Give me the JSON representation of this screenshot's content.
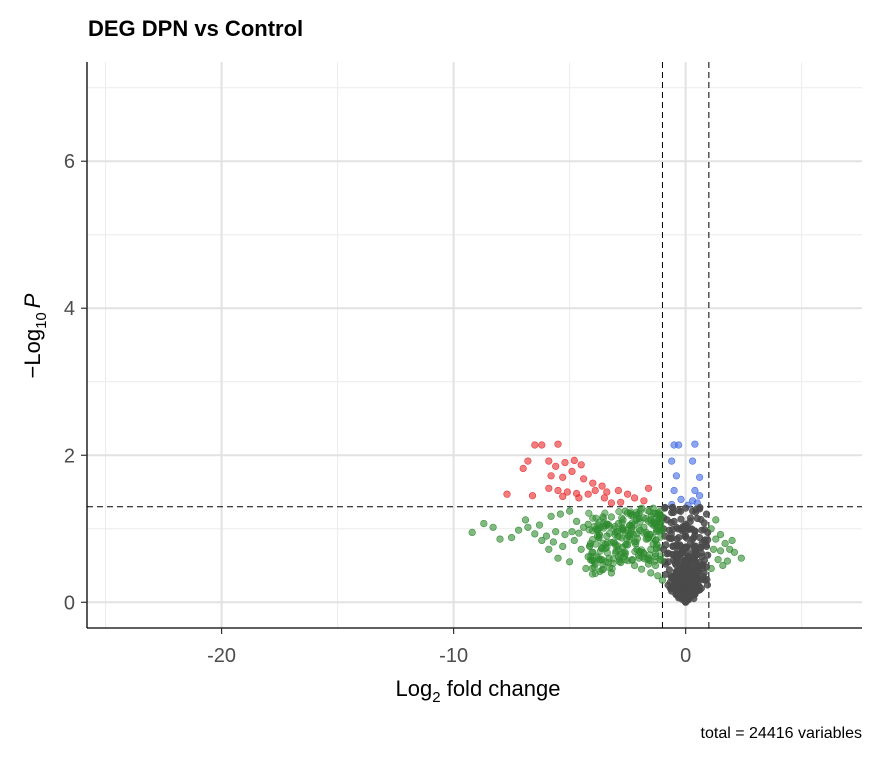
{
  "chart_data": {
    "type": "scatter",
    "title": "DEG DPN vs Control",
    "xlabel": {
      "base": "Log",
      "sub": "2",
      "rest": " fold change"
    },
    "ylabel": {
      "prefix": "−Log",
      "sub": "10",
      "italic": "P"
    },
    "caption": "total = 24416 variables",
    "xlim": [
      -25.8,
      7.6
    ],
    "ylim": [
      -0.35,
      7.35
    ],
    "x_ticks": [
      -20,
      -10,
      0
    ],
    "x_tick_labels": [
      "-20",
      "-10",
      "0"
    ],
    "y_ticks": [
      0,
      2,
      4,
      6
    ],
    "y_tick_labels": [
      "0",
      "2",
      "4",
      "6"
    ],
    "x_minor_gridlines": [
      -25,
      -15,
      -5,
      5
    ],
    "y_minor_gridlines": [
      1,
      3,
      5,
      7
    ],
    "legend": "none",
    "grid": true,
    "thresholds": {
      "fold_change": [
        -1,
        1
      ],
      "p_value": 1.3
    },
    "colors": {
      "ns": "#4a4a4a",
      "log2fc": "#2e8b2e",
      "p": "#4169e1",
      "p_and_log2fc": "#e8282a"
    },
    "series": [
      {
        "key": "p_and_log2fc",
        "points": [
          [
            -6.5,
            2.14
          ],
          [
            -6.2,
            2.14
          ],
          [
            -5.5,
            2.15
          ],
          [
            -6.8,
            1.92
          ],
          [
            -5.9,
            1.92
          ],
          [
            -7.0,
            1.82
          ],
          [
            -5.6,
            1.85
          ],
          [
            -5.2,
            1.9
          ],
          [
            -4.8,
            1.93
          ],
          [
            -4.5,
            1.87
          ],
          [
            -5.8,
            1.72
          ],
          [
            -5.3,
            1.7
          ],
          [
            -4.9,
            1.78
          ],
          [
            -4.4,
            1.68
          ],
          [
            -4.0,
            1.62
          ],
          [
            -3.6,
            1.58
          ],
          [
            -5.9,
            1.55
          ],
          [
            -5.5,
            1.52
          ],
          [
            -5.1,
            1.5
          ],
          [
            -4.7,
            1.48
          ],
          [
            -4.2,
            1.47
          ],
          [
            -3.9,
            1.52
          ],
          [
            -3.4,
            1.5
          ],
          [
            -2.9,
            1.52
          ],
          [
            -2.5,
            1.47
          ],
          [
            -2.2,
            1.42
          ],
          [
            -1.8,
            1.38
          ],
          [
            -1.6,
            1.55
          ],
          [
            -7.7,
            1.47
          ],
          [
            -6.6,
            1.45
          ],
          [
            -2.8,
            1.36
          ],
          [
            -3.2,
            1.35
          ],
          [
            -4.6,
            1.42
          ],
          [
            -5.3,
            1.44
          ],
          [
            -3.5,
            1.42
          ]
        ]
      },
      {
        "key": "p",
        "points": [
          [
            -0.5,
            2.14
          ],
          [
            -0.3,
            2.14
          ],
          [
            0.4,
            2.15
          ],
          [
            -0.6,
            1.92
          ],
          [
            0.3,
            1.92
          ],
          [
            -0.4,
            1.72
          ],
          [
            0.6,
            1.7
          ],
          [
            -0.5,
            1.52
          ],
          [
            0.4,
            1.52
          ],
          [
            0.6,
            1.45
          ],
          [
            -0.2,
            1.4
          ],
          [
            0.3,
            1.38
          ],
          [
            0.5,
            1.35
          ],
          [
            -0.6,
            1.33
          ],
          [
            0.1,
            1.32
          ]
        ]
      },
      {
        "key": "log2fc",
        "points": [
          [
            -8.7,
            1.07
          ],
          [
            -8.3,
            1.02
          ],
          [
            -9.2,
            0.95
          ],
          [
            -7.2,
            0.98
          ],
          [
            -6.8,
            1.02
          ],
          [
            -6.5,
            0.93
          ],
          [
            -6.0,
            0.9
          ],
          [
            -5.6,
            0.96
          ],
          [
            -7.5,
            0.88
          ],
          [
            -8.0,
            0.86
          ],
          [
            -6.3,
            1.05
          ],
          [
            -5.8,
            1.17
          ],
          [
            -5.4,
            1.2
          ],
          [
            -5.0,
            1.24
          ],
          [
            -4.7,
            1.1
          ],
          [
            -4.4,
            1.02
          ],
          [
            -4.9,
            0.96
          ],
          [
            -5.7,
            0.82
          ],
          [
            -5.9,
            0.72
          ],
          [
            -5.3,
            0.76
          ],
          [
            -4.8,
            0.84
          ],
          [
            -4.5,
            0.72
          ],
          [
            -4.1,
            0.8
          ],
          [
            -3.8,
            0.9
          ],
          [
            -3.5,
            1.04
          ],
          [
            -3.2,
            1.16
          ],
          [
            -2.9,
            1.07
          ],
          [
            -2.7,
            0.98
          ],
          [
            -2.4,
            0.86
          ],
          [
            -2.1,
            0.93
          ],
          [
            -1.8,
            1.02
          ],
          [
            -1.5,
            1.12
          ],
          [
            -1.2,
            1.2
          ],
          [
            -2.3,
            1.19
          ],
          [
            -2.0,
            1.14
          ],
          [
            -1.7,
            0.86
          ],
          [
            -1.4,
            0.79
          ],
          [
            -1.1,
            0.74
          ],
          [
            -1.3,
            0.66
          ],
          [
            -1.6,
            0.6
          ],
          [
            -2.6,
            0.66
          ],
          [
            -3.0,
            0.7
          ],
          [
            -3.3,
            0.6
          ],
          [
            -3.7,
            0.58
          ],
          [
            -4.2,
            0.62
          ],
          [
            -5.0,
            0.55
          ],
          [
            -5.5,
            0.6
          ],
          [
            -3.9,
            0.52
          ],
          [
            -3.6,
            0.44
          ],
          [
            -4.3,
            0.46
          ],
          [
            -2.8,
            0.54
          ],
          [
            -2.2,
            0.5
          ],
          [
            -1.9,
            0.45
          ],
          [
            -1.5,
            0.4
          ],
          [
            -1.2,
            0.36
          ],
          [
            -1.0,
            0.3
          ],
          [
            -3.1,
            0.82
          ],
          [
            -2.5,
            0.78
          ],
          [
            -3.4,
            0.9
          ],
          [
            -3.8,
            0.98
          ],
          [
            -4.2,
            1.06
          ],
          [
            -2.6,
            1.24
          ],
          [
            -1.9,
            1.28
          ],
          [
            -1.4,
            1.28
          ],
          [
            -2.1,
            0.72
          ],
          [
            -1.8,
            0.66
          ],
          [
            -3.2,
            0.4
          ],
          [
            -6.2,
            0.84
          ],
          [
            -6.9,
            1.12
          ],
          [
            -5.2,
            0.92
          ],
          [
            -4.6,
            0.94
          ],
          [
            -2.0,
            0.6
          ],
          [
            -1.3,
            0.5
          ],
          [
            -1.7,
            0.95
          ],
          [
            -2.4,
            1.05
          ],
          [
            -3.0,
            0.95
          ],
          [
            -3.6,
            0.74
          ],
          [
            -4.0,
            0.68
          ],
          [
            -1.1,
            1.0
          ],
          [
            -1.5,
            0.72
          ],
          [
            -2.9,
            0.62
          ],
          [
            -2.3,
            0.58
          ],
          [
            -1.6,
            0.52
          ],
          [
            -1.1,
            0.58
          ],
          [
            -1.4,
            1.05
          ],
          [
            -2.7,
            1.12
          ],
          [
            1.1,
            1.0
          ],
          [
            1.3,
            0.86
          ],
          [
            1.5,
            0.92
          ],
          [
            1.7,
            0.8
          ],
          [
            1.2,
            0.72
          ],
          [
            1.9,
            0.72
          ],
          [
            2.1,
            0.68
          ],
          [
            2.4,
            0.6
          ],
          [
            1.4,
            0.58
          ],
          [
            1.6,
            0.5
          ],
          [
            1.1,
            0.46
          ],
          [
            1.8,
            0.56
          ],
          [
            1.3,
            1.12
          ],
          [
            1.5,
            0.7
          ],
          [
            2.0,
            0.84
          ]
        ]
      },
      {
        "key": "ns",
        "points": [
          [
            -0.9,
            1.28
          ],
          [
            -0.6,
            1.22
          ],
          [
            -0.3,
            1.25
          ],
          [
            0.0,
            1.28
          ],
          [
            0.3,
            1.24
          ],
          [
            0.6,
            1.27
          ],
          [
            0.9,
            1.2
          ],
          [
            -0.8,
            1.12
          ],
          [
            -0.5,
            1.1
          ],
          [
            -0.2,
            1.13
          ],
          [
            0.2,
            1.1
          ],
          [
            0.5,
            1.14
          ],
          [
            0.8,
            1.08
          ],
          [
            -0.95,
            1.0
          ],
          [
            -0.7,
            0.98
          ],
          [
            -0.4,
            1.02
          ],
          [
            -0.1,
            0.99
          ],
          [
            0.2,
            1.0
          ],
          [
            0.4,
            0.97
          ],
          [
            0.7,
            0.98
          ],
          [
            0.95,
            0.95
          ],
          [
            -0.9,
            0.9
          ],
          [
            -0.6,
            0.87
          ],
          [
            -0.3,
            0.88
          ],
          [
            0.0,
            0.9
          ],
          [
            0.3,
            0.86
          ],
          [
            0.6,
            0.88
          ],
          [
            0.85,
            0.85
          ],
          [
            -0.85,
            0.78
          ],
          [
            -0.55,
            0.76
          ],
          [
            -0.25,
            0.78
          ],
          [
            0.05,
            0.75
          ],
          [
            0.35,
            0.77
          ],
          [
            0.65,
            0.74
          ],
          [
            0.9,
            0.76
          ],
          [
            -0.8,
            0.66
          ],
          [
            -0.5,
            0.64
          ],
          [
            -0.2,
            0.66
          ],
          [
            0.1,
            0.63
          ],
          [
            0.4,
            0.65
          ],
          [
            0.7,
            0.62
          ],
          [
            0.95,
            0.64
          ],
          [
            -0.75,
            0.55
          ],
          [
            -0.45,
            0.53
          ],
          [
            -0.15,
            0.55
          ],
          [
            0.15,
            0.52
          ],
          [
            0.45,
            0.54
          ],
          [
            0.75,
            0.51
          ],
          [
            -0.7,
            0.44
          ],
          [
            -0.4,
            0.42
          ],
          [
            -0.1,
            0.44
          ],
          [
            0.2,
            0.41
          ],
          [
            0.5,
            0.43
          ],
          [
            0.8,
            0.4
          ],
          [
            -0.6,
            0.33
          ],
          [
            -0.3,
            0.31
          ],
          [
            0.0,
            0.33
          ],
          [
            0.3,
            0.3
          ],
          [
            0.6,
            0.32
          ],
          [
            -0.5,
            0.22
          ],
          [
            -0.2,
            0.2
          ],
          [
            0.1,
            0.22
          ],
          [
            0.4,
            0.19
          ],
          [
            -0.35,
            0.12
          ],
          [
            -0.05,
            0.1
          ],
          [
            0.25,
            0.12
          ],
          [
            -0.15,
            0.04
          ],
          [
            0.1,
            0.03
          ],
          [
            -0.3,
            0.06
          ],
          [
            0.35,
            0.05
          ],
          [
            0.0,
            0.0
          ],
          [
            -0.6,
            0.15
          ],
          [
            0.6,
            0.17
          ],
          [
            -0.85,
            0.38
          ],
          [
            0.85,
            0.3
          ],
          [
            -0.9,
            0.55
          ],
          [
            0.9,
            0.48
          ],
          [
            -0.95,
            0.72
          ],
          [
            0.95,
            0.85
          ],
          [
            -0.95,
            1.15
          ]
        ]
      }
    ]
  }
}
